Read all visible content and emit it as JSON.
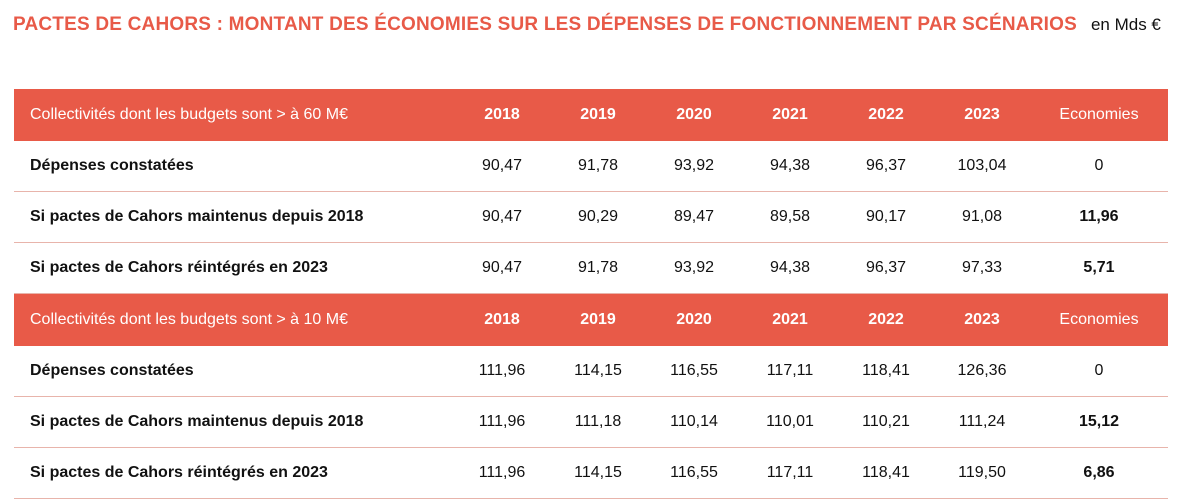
{
  "title": {
    "main": "PACTES DE CAHORS : MONTANT DES ÉCONOMIES SUR LES DÉPENSES DE FONCTIONNEMENT PAR SCÉNARIOS",
    "unit": "en Mds €"
  },
  "sections": [
    {
      "header": {
        "label": "Collectivités dont les budgets sont > à 60 M€",
        "years": [
          "2018",
          "2019",
          "2020",
          "2021",
          "2022",
          "2023"
        ],
        "economies": "Economies"
      },
      "rows": [
        {
          "label": "Dépenses constatées",
          "values": [
            "90,47",
            "91,78",
            "93,92",
            "94,38",
            "96,37",
            "103,04"
          ],
          "economies": "0"
        },
        {
          "label": "Si pactes de Cahors maintenus depuis 2018",
          "values": [
            "90,47",
            "90,29",
            "89,47",
            "89,58",
            "90,17",
            "91,08"
          ],
          "economies": "11,96"
        },
        {
          "label": "Si pactes de Cahors réintégrés en 2023",
          "values": [
            "90,47",
            "91,78",
            "93,92",
            "94,38",
            "96,37",
            "97,33"
          ],
          "economies": "5,71"
        }
      ]
    },
    {
      "header": {
        "label": "Collectivités dont les budgets sont > à  10 M€",
        "years": [
          "2018",
          "2019",
          "2020",
          "2021",
          "2022",
          "2023"
        ],
        "economies": "Economies"
      },
      "rows": [
        {
          "label": "Dépenses constatées",
          "values": [
            "111,96",
            "114,15",
            "116,55",
            "117,11",
            "118,41",
            "126,36"
          ],
          "economies": "0"
        },
        {
          "label": "Si pactes de Cahors maintenus depuis 2018",
          "values": [
            "111,96",
            "111,18",
            "110,14",
            "110,01",
            "110,21",
            "111,24"
          ],
          "economies": "15,12"
        },
        {
          "label": "Si pactes de Cahors réintégrés en 2023",
          "values": [
            "111,96",
            "114,15",
            "116,55",
            "117,11",
            "118,41",
            "119,50"
          ],
          "economies": "6,86"
        }
      ]
    }
  ],
  "colors": {
    "accent": "#e85a48",
    "economies_text": "#9a2c2c",
    "row_divider": "#e8b4ab"
  }
}
